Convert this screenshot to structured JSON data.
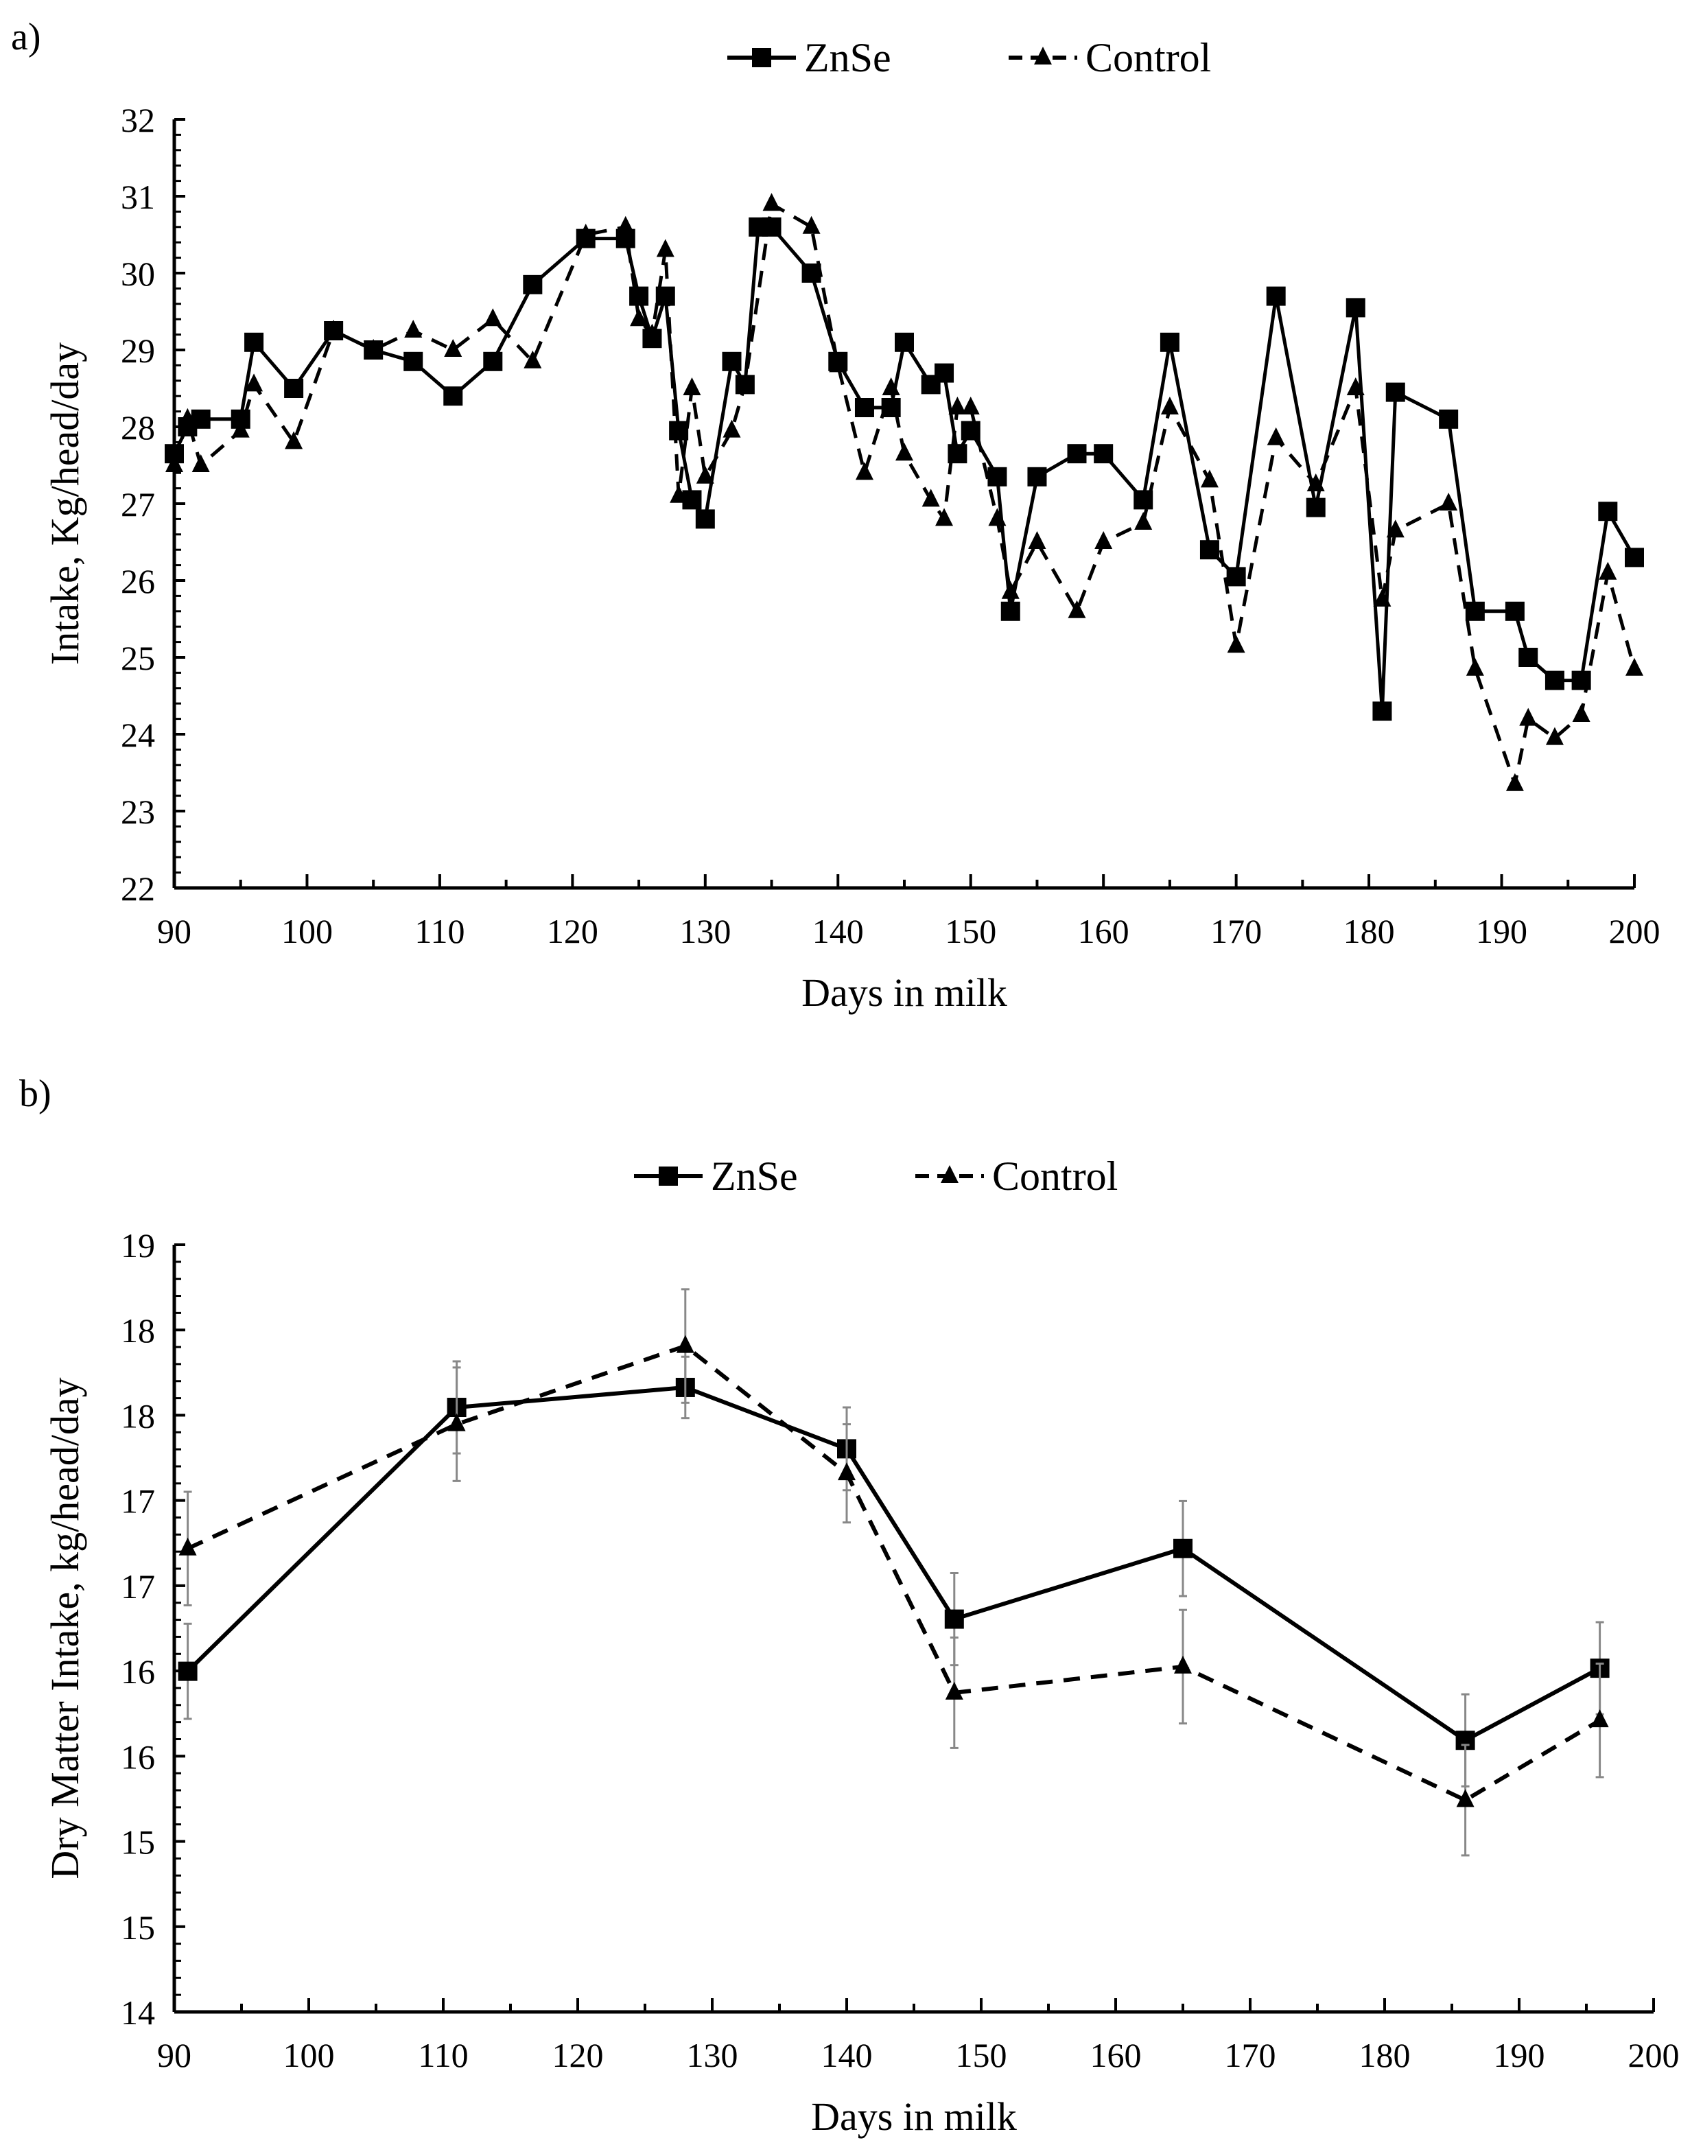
{
  "chart_data": [
    {
      "type": "line",
      "panel_label": "a)",
      "title": "",
      "xlabel": "Days in milk",
      "ylabel": "Intake, Kg/head/day",
      "xlim": [
        90,
        200
      ],
      "ylim": [
        22,
        32
      ],
      "x_ticks": [
        "90",
        "100",
        "110",
        "120",
        "130",
        "140",
        "150",
        "160",
        "170",
        "180",
        "190",
        "200"
      ],
      "y_ticks": [
        "22",
        "23",
        "24",
        "25",
        "26",
        "27",
        "28",
        "29",
        "30",
        "31",
        "32"
      ],
      "grid": false,
      "legend": "top-center",
      "series": [
        {
          "name": "ZnSe",
          "style": "solid",
          "marker": "square",
          "x": [
            90,
            91,
            92,
            95,
            96,
            99,
            102,
            105,
            108,
            111,
            114,
            117,
            121,
            124,
            125,
            126,
            127,
            128,
            129,
            130,
            132,
            133,
            134,
            135,
            138,
            140,
            142,
            144,
            145,
            147,
            148,
            149,
            150,
            152,
            153,
            155,
            158,
            160,
            163,
            165,
            168,
            170,
            173,
            176,
            179,
            181,
            182,
            186,
            188,
            191,
            192,
            194,
            196,
            198,
            200
          ],
          "y": [
            27.65,
            28.0,
            28.1,
            28.1,
            29.1,
            28.5,
            29.25,
            29.0,
            28.85,
            28.4,
            28.85,
            29.85,
            30.45,
            30.45,
            29.7,
            29.15,
            29.7,
            27.95,
            27.05,
            26.8,
            28.85,
            28.55,
            30.6,
            30.6,
            30.0,
            28.85,
            28.25,
            28.25,
            29.1,
            28.55,
            28.7,
            27.65,
            27.95,
            27.35,
            25.6,
            27.35,
            27.65,
            27.65,
            27.05,
            29.1,
            26.4,
            26.05,
            29.7,
            26.95,
            29.55,
            24.3,
            28.45,
            28.1,
            25.6,
            25.6,
            25.0,
            24.7,
            24.7,
            26.9,
            26.3
          ]
        },
        {
          "name": "Control",
          "style": "dashed",
          "marker": "triangle",
          "x": [
            90,
            91,
            92,
            95,
            96,
            99,
            102,
            105,
            108,
            111,
            114,
            117,
            121,
            124,
            125,
            126,
            127,
            128,
            129,
            130,
            132,
            133,
            135,
            138,
            140,
            142,
            144,
            145,
            147,
            148,
            149,
            150,
            152,
            153,
            155,
            158,
            160,
            163,
            165,
            168,
            170,
            173,
            176,
            179,
            181,
            182,
            186,
            188,
            191,
            192,
            194,
            196,
            198,
            200
          ],
          "y": [
            27.5,
            28.1,
            27.5,
            27.95,
            28.55,
            27.8,
            29.25,
            29.0,
            29.25,
            29.0,
            29.4,
            28.85,
            30.5,
            30.6,
            29.4,
            29.2,
            30.3,
            27.1,
            28.5,
            27.35,
            27.95,
            28.55,
            30.9,
            30.6,
            28.8,
            27.4,
            28.5,
            27.65,
            27.05,
            26.8,
            28.25,
            28.25,
            26.8,
            25.85,
            26.5,
            25.6,
            26.5,
            26.75,
            28.25,
            27.3,
            25.15,
            27.85,
            27.25,
            28.5,
            25.75,
            26.65,
            27.0,
            24.85,
            23.35,
            24.2,
            23.95,
            24.25,
            26.1,
            24.85
          ]
        }
      ]
    },
    {
      "type": "line",
      "panel_label": "b)",
      "title": "",
      "xlabel": "Days in milk",
      "ylabel": "Dry Matter Intake, kg/head/day",
      "xlim": [
        90,
        200
      ],
      "ylim": [
        14,
        19
      ],
      "x_ticks": [
        "90",
        "100",
        "110",
        "120",
        "130",
        "140",
        "150",
        "160",
        "170",
        "180",
        "190",
        "200"
      ],
      "y_ticks": [
        "14",
        "15",
        "15",
        "16",
        "16",
        "17",
        "17",
        "18",
        "18",
        "19"
      ],
      "grid": false,
      "legend": "top-center",
      "series": [
        {
          "name": "ZnSe",
          "style": "solid",
          "marker": "square",
          "x": [
            91,
            111,
            128,
            140,
            148,
            165,
            186,
            196
          ],
          "y": [
            16.22,
            17.94,
            18.07,
            17.67,
            16.56,
            17.02,
            15.77,
            16.24
          ],
          "error": [
            0.31,
            0.3,
            0.2,
            0.27,
            0.3,
            0.31,
            0.3,
            0.3
          ]
        },
        {
          "name": "Control",
          "style": "dashed",
          "marker": "triangle",
          "x": [
            91,
            111,
            128,
            140,
            148,
            165,
            186,
            196
          ],
          "y": [
            17.02,
            17.83,
            18.34,
            17.51,
            16.08,
            16.25,
            15.38,
            15.9
          ],
          "error": [
            0.37,
            0.37,
            0.37,
            0.32,
            0.36,
            0.37,
            0.36,
            0.37
          ]
        }
      ]
    }
  ]
}
